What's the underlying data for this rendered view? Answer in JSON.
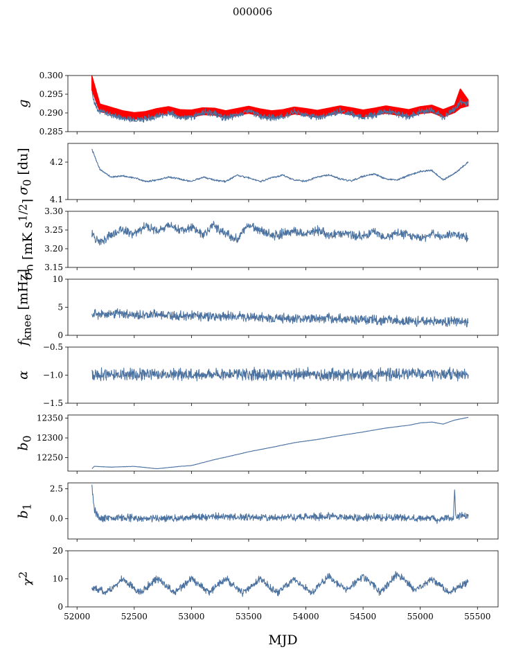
{
  "figure": {
    "title": "000006",
    "xlabel": "MJD",
    "xlim": [
      51920,
      55680
    ],
    "xticks": [
      52000,
      52500,
      53000,
      53500,
      54000,
      54500,
      55000,
      55500
    ]
  },
  "chart_data": [
    {
      "type": "line",
      "panel": "g",
      "ylabel_html": "<i>g</i>",
      "ylim": [
        0.285,
        0.3
      ],
      "yticks": [
        "0.285",
        "0.290",
        "0.295",
        "0.300"
      ],
      "series": [
        {
          "color": "#ff0000",
          "style": "band",
          "x": [
            52130,
            52200,
            52300,
            52400,
            52500,
            52600,
            52700,
            52800,
            52900,
            53000,
            53100,
            53200,
            53300,
            53400,
            53500,
            53600,
            53700,
            53800,
            53900,
            54000,
            54100,
            54200,
            54300,
            54400,
            54500,
            54600,
            54700,
            54800,
            54900,
            55000,
            55100,
            55200,
            55300,
            55350,
            55420
          ],
          "lower": [
            0.296,
            0.2902,
            0.2896,
            0.2885,
            0.2882,
            0.2884,
            0.2892,
            0.2898,
            0.2889,
            0.2888,
            0.2894,
            0.2893,
            0.2886,
            0.2892,
            0.2898,
            0.2891,
            0.2886,
            0.2889,
            0.2896,
            0.2892,
            0.2887,
            0.2893,
            0.2899,
            0.2894,
            0.2888,
            0.2893,
            0.2898,
            0.2893,
            0.2889,
            0.2897,
            0.29,
            0.2888,
            0.29,
            0.2912,
            0.2918
          ],
          "upper": [
            0.3,
            0.2925,
            0.2916,
            0.2907,
            0.2902,
            0.2905,
            0.2913,
            0.2918,
            0.291,
            0.2909,
            0.2915,
            0.2914,
            0.2907,
            0.2913,
            0.2919,
            0.2912,
            0.2907,
            0.291,
            0.2917,
            0.2913,
            0.2908,
            0.2914,
            0.292,
            0.2915,
            0.2909,
            0.2914,
            0.292,
            0.2915,
            0.291,
            0.2918,
            0.2922,
            0.291,
            0.2922,
            0.2965,
            0.2935
          ]
        },
        {
          "color": "#4c72a0",
          "style": "line",
          "x": [
            52130,
            52160,
            52200,
            52300,
            52400,
            52500,
            52600,
            52700,
            52800,
            52900,
            53000,
            53100,
            53200,
            53300,
            53400,
            53500,
            53600,
            53700,
            53800,
            53900,
            54000,
            54100,
            54200,
            54300,
            54400,
            54500,
            54600,
            54700,
            54800,
            54900,
            55000,
            55100,
            55200,
            55300,
            55350,
            55420
          ],
          "y": [
            0.2955,
            0.292,
            0.2905,
            0.2895,
            0.2885,
            0.2882,
            0.2884,
            0.289,
            0.29,
            0.2888,
            0.2888,
            0.2903,
            0.2897,
            0.2886,
            0.2894,
            0.2905,
            0.2892,
            0.2886,
            0.2889,
            0.2903,
            0.2896,
            0.2887,
            0.2895,
            0.2905,
            0.2897,
            0.2888,
            0.2895,
            0.2903,
            0.2898,
            0.2889,
            0.2903,
            0.2909,
            0.2888,
            0.291,
            0.293,
            0.2925
          ]
        }
      ]
    },
    {
      "type": "line",
      "panel": "sigma0_du",
      "ylabel_html": "<i>σ</i><sub>0</sub> [du]",
      "ylim": [
        4.1,
        4.25
      ],
      "yticks": [
        "4.1",
        "4.2"
      ],
      "series": [
        {
          "color": "#4c72a0",
          "style": "line",
          "x": [
            52130,
            52200,
            52300,
            52400,
            52500,
            52600,
            52700,
            52800,
            52900,
            53000,
            53100,
            53200,
            53300,
            53400,
            53500,
            53600,
            53700,
            53800,
            53900,
            54000,
            54100,
            54200,
            54300,
            54400,
            54500,
            54600,
            54700,
            54800,
            54900,
            55000,
            55100,
            55200,
            55300,
            55420
          ],
          "y": [
            4.235,
            4.18,
            4.16,
            4.163,
            4.158,
            4.148,
            4.152,
            4.16,
            4.155,
            4.148,
            4.16,
            4.152,
            4.148,
            4.165,
            4.158,
            4.148,
            4.158,
            4.165,
            4.152,
            4.149,
            4.16,
            4.166,
            4.155,
            4.15,
            4.162,
            4.168,
            4.155,
            4.152,
            4.165,
            4.175,
            4.178,
            4.152,
            4.17,
            4.2
          ]
        }
      ]
    },
    {
      "type": "line",
      "panel": "sigma0_mK",
      "ylabel_html": "<i>σ</i><sub>0</sub> [mK s<sup>1/2</sup>]",
      "ylim": [
        3.15,
        3.3
      ],
      "yticks": [
        "3.15",
        "3.20",
        "3.25",
        "3.30"
      ],
      "series": [
        {
          "color": "#4c72a0",
          "style": "line",
          "x": [
            52130,
            52200,
            52300,
            52400,
            52500,
            52600,
            52700,
            52800,
            52900,
            53000,
            53100,
            53200,
            53300,
            53400,
            53500,
            53600,
            53700,
            53800,
            53900,
            54000,
            54100,
            54200,
            54300,
            54400,
            54500,
            54600,
            54700,
            54800,
            54900,
            55000,
            55100,
            55200,
            55300,
            55420
          ],
          "y": [
            3.24,
            3.215,
            3.238,
            3.252,
            3.238,
            3.262,
            3.248,
            3.265,
            3.25,
            3.258,
            3.238,
            3.262,
            3.24,
            3.225,
            3.265,
            3.25,
            3.235,
            3.24,
            3.245,
            3.238,
            3.25,
            3.235,
            3.24,
            3.238,
            3.232,
            3.245,
            3.23,
            3.24,
            3.235,
            3.228,
            3.24,
            3.233,
            3.238,
            3.228
          ]
        }
      ]
    },
    {
      "type": "line",
      "panel": "fknee",
      "ylabel_html": "<i>f</i><sub>knee</sub> [mHz]",
      "ylim": [
        0,
        10
      ],
      "yticks": [
        "0",
        "5",
        "10"
      ],
      "series": [
        {
          "color": "#4c72a0",
          "style": "line",
          "x": [
            52130,
            52300,
            52500,
            52700,
            52900,
            53100,
            53300,
            53500,
            53700,
            53900,
            54100,
            54300,
            54500,
            54700,
            54900,
            55100,
            55300,
            55420
          ],
          "y": [
            3.8,
            3.9,
            3.6,
            3.7,
            3.5,
            3.4,
            3.5,
            3.2,
            3.1,
            3.0,
            3.0,
            2.9,
            2.8,
            2.7,
            2.6,
            2.5,
            2.4,
            2.3
          ]
        }
      ]
    },
    {
      "type": "line",
      "panel": "alpha",
      "ylabel_html": "<i>α</i>",
      "ylim": [
        -1.5,
        -0.5
      ],
      "yticks": [
        "−1.5",
        "−1.0",
        "−0.5"
      ],
      "series": [
        {
          "color": "#4c72a0",
          "style": "line",
          "x": [
            52130,
            52400,
            52700,
            53000,
            53300,
            53600,
            53900,
            54200,
            54500,
            54800,
            55100,
            55420
          ],
          "y": [
            -0.98,
            -0.99,
            -0.98,
            -0.99,
            -0.98,
            -0.99,
            -0.98,
            -0.99,
            -0.98,
            -0.99,
            -0.98,
            -0.99
          ]
        }
      ]
    },
    {
      "type": "line",
      "panel": "b0",
      "ylabel_html": "<i>b</i><sub>0</sub>",
      "ylim": [
        12216,
        12358
      ],
      "yticks": [
        "12250",
        "12300",
        "12350"
      ],
      "series": [
        {
          "color": "#4c72a0",
          "style": "line",
          "x": [
            52130,
            52150,
            52300,
            52500,
            52700,
            52900,
            53000,
            53200,
            53400,
            53500,
            53700,
            53900,
            54100,
            54300,
            54500,
            54700,
            54900,
            55000,
            55100,
            55200,
            55300,
            55420
          ],
          "y": [
            12222,
            12228,
            12226,
            12228,
            12222,
            12228,
            12230,
            12245,
            12258,
            12265,
            12276,
            12288,
            12296,
            12306,
            12315,
            12325,
            12332,
            12338,
            12340,
            12335,
            12345,
            12352
          ]
        }
      ]
    },
    {
      "type": "line",
      "panel": "b1",
      "ylabel_html": "<i>b</i><sub>1</sub>",
      "ylim": [
        -1.7,
        3.0
      ],
      "yticks": [
        "0.0",
        "2.5"
      ],
      "series": [
        {
          "color": "#4c72a0",
          "style": "line",
          "x": [
            52130,
            52150,
            52200,
            52400,
            52700,
            53000,
            53300,
            53600,
            53900,
            54200,
            54500,
            54800,
            55000,
            55100,
            55150,
            55200,
            55290,
            55300,
            55310,
            55420
          ],
          "y": [
            2.7,
            0.8,
            0.0,
            0.1,
            0.0,
            0.1,
            0.2,
            0.1,
            0.1,
            0.2,
            0.1,
            0.1,
            0.0,
            0.1,
            -0.2,
            0.1,
            0.0,
            2.5,
            0.2,
            0.2
          ]
        }
      ]
    },
    {
      "type": "line",
      "panel": "chi2",
      "ylabel_html": "<i>χ</i><sup>2</sup>",
      "ylim": [
        0,
        20
      ],
      "yticks": [
        "0",
        "10",
        "20"
      ],
      "series": [
        {
          "color": "#4c72a0",
          "style": "line",
          "x": [
            52130,
            52250,
            52400,
            52550,
            52700,
            52850,
            53000,
            53150,
            53300,
            53450,
            53600,
            53750,
            53900,
            54050,
            54200,
            54350,
            54500,
            54650,
            54800,
            54950,
            55100,
            55250,
            55420
          ],
          "y": [
            7,
            5,
            10,
            5,
            10,
            5,
            10,
            5,
            10,
            5,
            10,
            5,
            10,
            5,
            11,
            6,
            11,
            5,
            12,
            6,
            10,
            5,
            9
          ]
        }
      ]
    }
  ]
}
